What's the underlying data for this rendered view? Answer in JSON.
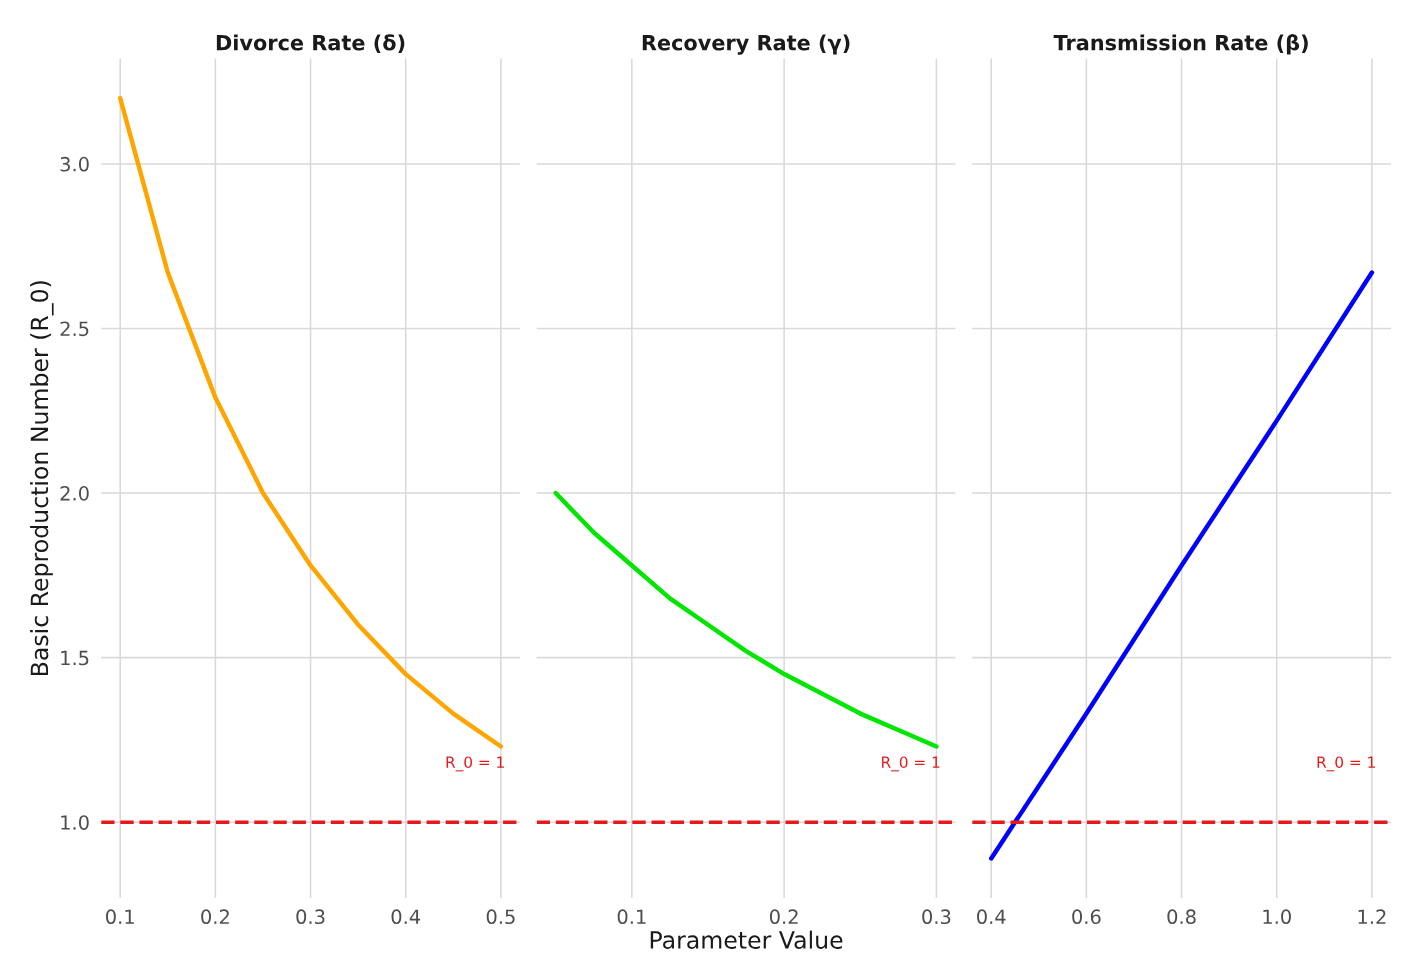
{
  "chart_data": [
    {
      "type": "line",
      "title": "Divorce Rate (δ)",
      "ylabel": "Basic Reproduction Number (R_0)",
      "x": [
        0.1,
        0.15,
        0.2,
        0.25,
        0.3,
        0.35,
        0.4,
        0.45,
        0.5
      ],
      "series": [
        {
          "color": "#ffa500",
          "values": [
            3.2,
            2.67,
            2.29,
            2.0,
            1.78,
            1.6,
            1.45,
            1.33,
            1.23
          ]
        }
      ],
      "xlim": [
        0.08,
        0.52
      ],
      "xticks": [
        0.1,
        0.2,
        0.3,
        0.4,
        0.5
      ],
      "ylim": [
        0.77,
        3.32
      ],
      "yticks": [
        {
          "value": 1,
          "label": "1.0"
        },
        1.5,
        {
          "value": 2,
          "label": "2.0"
        },
        2.5,
        {
          "value": 3,
          "label": "3.0"
        }
      ],
      "ref_lines": [
        {
          "axis": "y",
          "value": 1,
          "color": "#e41a1c",
          "line_style": "dashed",
          "label": "R_0 = 1"
        }
      ],
      "grid": true,
      "marker": "none",
      "line_style": "solid"
    },
    {
      "type": "line",
      "title": "Recovery Rate (γ)",
      "xlabel": "Parameter Value",
      "x": [
        0.05,
        0.075,
        0.1,
        0.125,
        0.15,
        0.175,
        0.2,
        0.225,
        0.25,
        0.275,
        0.3
      ],
      "series": [
        {
          "color": "#00e600",
          "values": [
            2.0,
            1.88,
            1.78,
            1.68,
            1.6,
            1.52,
            1.45,
            1.39,
            1.33,
            1.28,
            1.23
          ]
        }
      ],
      "xlim": [
        0.0375,
        0.3125
      ],
      "xticks": [
        0.1,
        0.2,
        0.3
      ],
      "ylim": [
        0.77,
        3.32
      ],
      "yticks": [
        {
          "value": 1,
          "label": null
        },
        {
          "value": 1.5,
          "label": null
        },
        {
          "value": 2,
          "label": null
        },
        {
          "value": 2.5,
          "label": null
        },
        {
          "value": 3,
          "label": null
        }
      ],
      "ref_lines": [
        {
          "axis": "y",
          "value": 1,
          "color": "#e41a1c",
          "line_style": "dashed",
          "label": "R_0 = 1"
        }
      ],
      "grid": true,
      "marker": "none",
      "line_style": "solid",
      "tick_labels": "x"
    },
    {
      "type": "line",
      "title": "Transmission Rate (β)",
      "x": [
        0.4,
        0.6,
        0.8,
        1.0,
        1.2
      ],
      "series": [
        {
          "color": "#0000ff",
          "values": [
            0.89,
            1.33,
            1.78,
            2.22,
            2.67
          ]
        }
      ],
      "xlim": [
        0.36,
        1.24
      ],
      "xticks": [
        0.4,
        0.6,
        0.8,
        {
          "value": 1,
          "label": "1.0"
        },
        1.2
      ],
      "ylim": [
        0.77,
        3.32
      ],
      "yticks": [
        {
          "value": 1,
          "label": null
        },
        {
          "value": 1.5,
          "label": null
        },
        {
          "value": 2,
          "label": null
        },
        {
          "value": 2.5,
          "label": null
        },
        {
          "value": 3,
          "label": null
        }
      ],
      "ref_lines": [
        {
          "axis": "y",
          "value": 1,
          "color": "#e41a1c",
          "line_style": "dashed",
          "label": "R_0 = 1"
        }
      ],
      "grid": true,
      "marker": "none",
      "line_style": "solid",
      "tick_labels": "x"
    }
  ]
}
